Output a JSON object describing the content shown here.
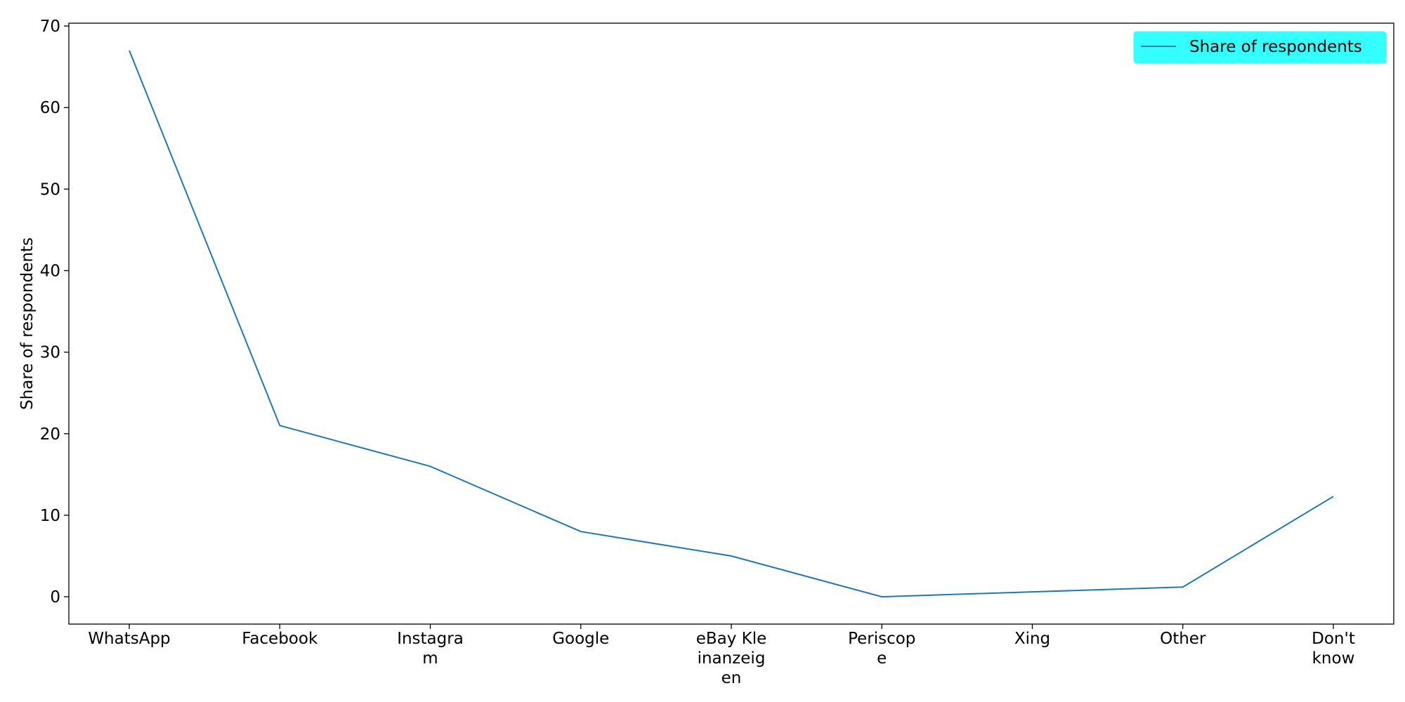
{
  "chart_data": {
    "type": "line",
    "title": "",
    "xlabel": "",
    "ylabel": "Share of respondents",
    "categories": [
      "WhatsApp",
      "Facebook",
      "Instagram",
      "Google",
      "eBay Kleinanzeigen",
      "Periscope",
      "Xing",
      "Other",
      "Don't know"
    ],
    "category_tick_lines": [
      [
        "WhatsApp"
      ],
      [
        "Facebook"
      ],
      [
        "Instagra",
        "m"
      ],
      [
        "Google"
      ],
      [
        "eBay Kle",
        "inanzeig",
        "en"
      ],
      [
        "Periscop",
        "e"
      ],
      [
        "Xing"
      ],
      [
        "Other"
      ],
      [
        "Don't",
        "know"
      ]
    ],
    "series": [
      {
        "name": "Share of respondents",
        "values": [
          67,
          21,
          16,
          8,
          5,
          0,
          0.6,
          1.2,
          12.3
        ],
        "color": "#1f77b4"
      }
    ],
    "yticks": [
      0,
      10,
      20,
      30,
      40,
      50,
      60,
      70
    ],
    "ylim": [
      -3.35,
      70.35
    ],
    "grid": false,
    "legend": {
      "position": "top-right",
      "background": "#33ffff"
    }
  }
}
